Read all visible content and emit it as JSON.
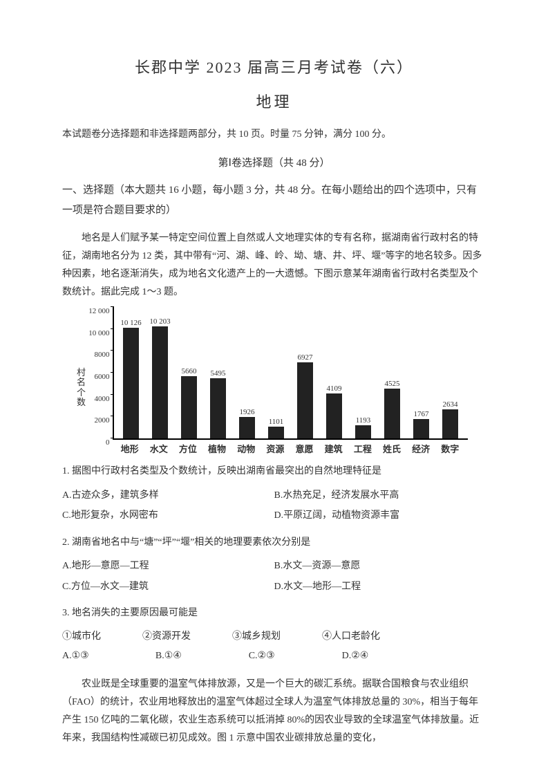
{
  "header": {
    "title": "长郡中学 2023 届高三月考试卷（六）",
    "subject": "地理"
  },
  "intro": "本试题卷分选择题和非选择题两部分，共 10 页。时量 75 分钟，满分 100 分。",
  "section1_head": "第Ⅰ卷选择题（共 48 分）",
  "section1_instr": "一、选择题（本大题共 16 小题，每小题 3 分，共 48 分。在每小题给出的四个选项中，只有一项是符合题目要求的）",
  "passage1": "地名是人们赋予某一特定空间位置上自然或人文地理实体的专有名称，据湖南省行政村名的特征，湖南地名分为 12 类，其中带有“河、湖、峰、岭、坳、塘、井、坪、堰”等字的地名较多。因多种因素，地名逐渐消失，成为地名文化遗产上的一大遗憾。下图示意某年湖南省行政村名类型及个数统计。据此完成 1～3 题。",
  "chart": {
    "type": "bar",
    "ylabel": "村名个数",
    "ylim": [
      0,
      12000
    ],
    "ytick_step": 2000,
    "bar_color": "#222222",
    "axis_color": "#000000",
    "bg_color": "#ffffff",
    "label_fontsize": 13,
    "value_fontsize": 11,
    "categories": [
      "地形",
      "水文",
      "方位",
      "植物",
      "动物",
      "资源",
      "意愿",
      "建筑",
      "工程",
      "姓氏",
      "经济",
      "数字"
    ],
    "values": [
      10126,
      10203,
      5660,
      5495,
      1926,
      1101,
      6927,
      4109,
      1193,
      4525,
      1767,
      2634
    ],
    "value_labels": [
      "10 126",
      "10 203",
      "5660",
      "5495",
      "1926",
      "1101",
      "6927",
      "4109",
      "1193",
      "4525",
      "1767",
      "2634"
    ]
  },
  "q1": {
    "stem": "1. 据图中行政村名类型及个数统计，反映出湖南省最突出的自然地理特征是",
    "opts": {
      "A": "A.古迹众多，建筑多样",
      "B": "B.水热充足，经济发展水平高",
      "C": "C.地形复杂，水网密布",
      "D": "D.平原辽阔，动植物资源丰富"
    }
  },
  "q2": {
    "stem": "2. 湖南省地名中与“塘”“坪”“堰”相关的地理要素依次分别是",
    "opts": {
      "A": "A.地形—意愿—工程",
      "B": "B.水文—资源—意愿",
      "C": "C.方位—水文—建筑",
      "D": "D.水文—地形—工程"
    }
  },
  "q3": {
    "stem": "3. 地名消失的主要原因最可能是",
    "circles": {
      "c1": "①城市化",
      "c2": "②资源开发",
      "c3": "③城乡规划",
      "c4": "④人口老龄化"
    },
    "opts": {
      "A": "A.①③",
      "B": "B.①④",
      "C": "C.②③",
      "D": "D.②④"
    }
  },
  "passage2": "农业既是全球重要的温室气体排放源，又是一个巨大的碳汇系统。据联合国粮食与农业组织（FAO）的统计，农业用地释放出的温室气体超过全球人为温室气体排放总量的 30%，相当于每年产生 150 亿吨的二氧化碳，农业生态系统可以抵消掉 80%的因农业导致的全球温室气体排放量。近年来，我国结构性减碳已初见成效。图 1 示意中国农业碳排放总量的变化，"
}
